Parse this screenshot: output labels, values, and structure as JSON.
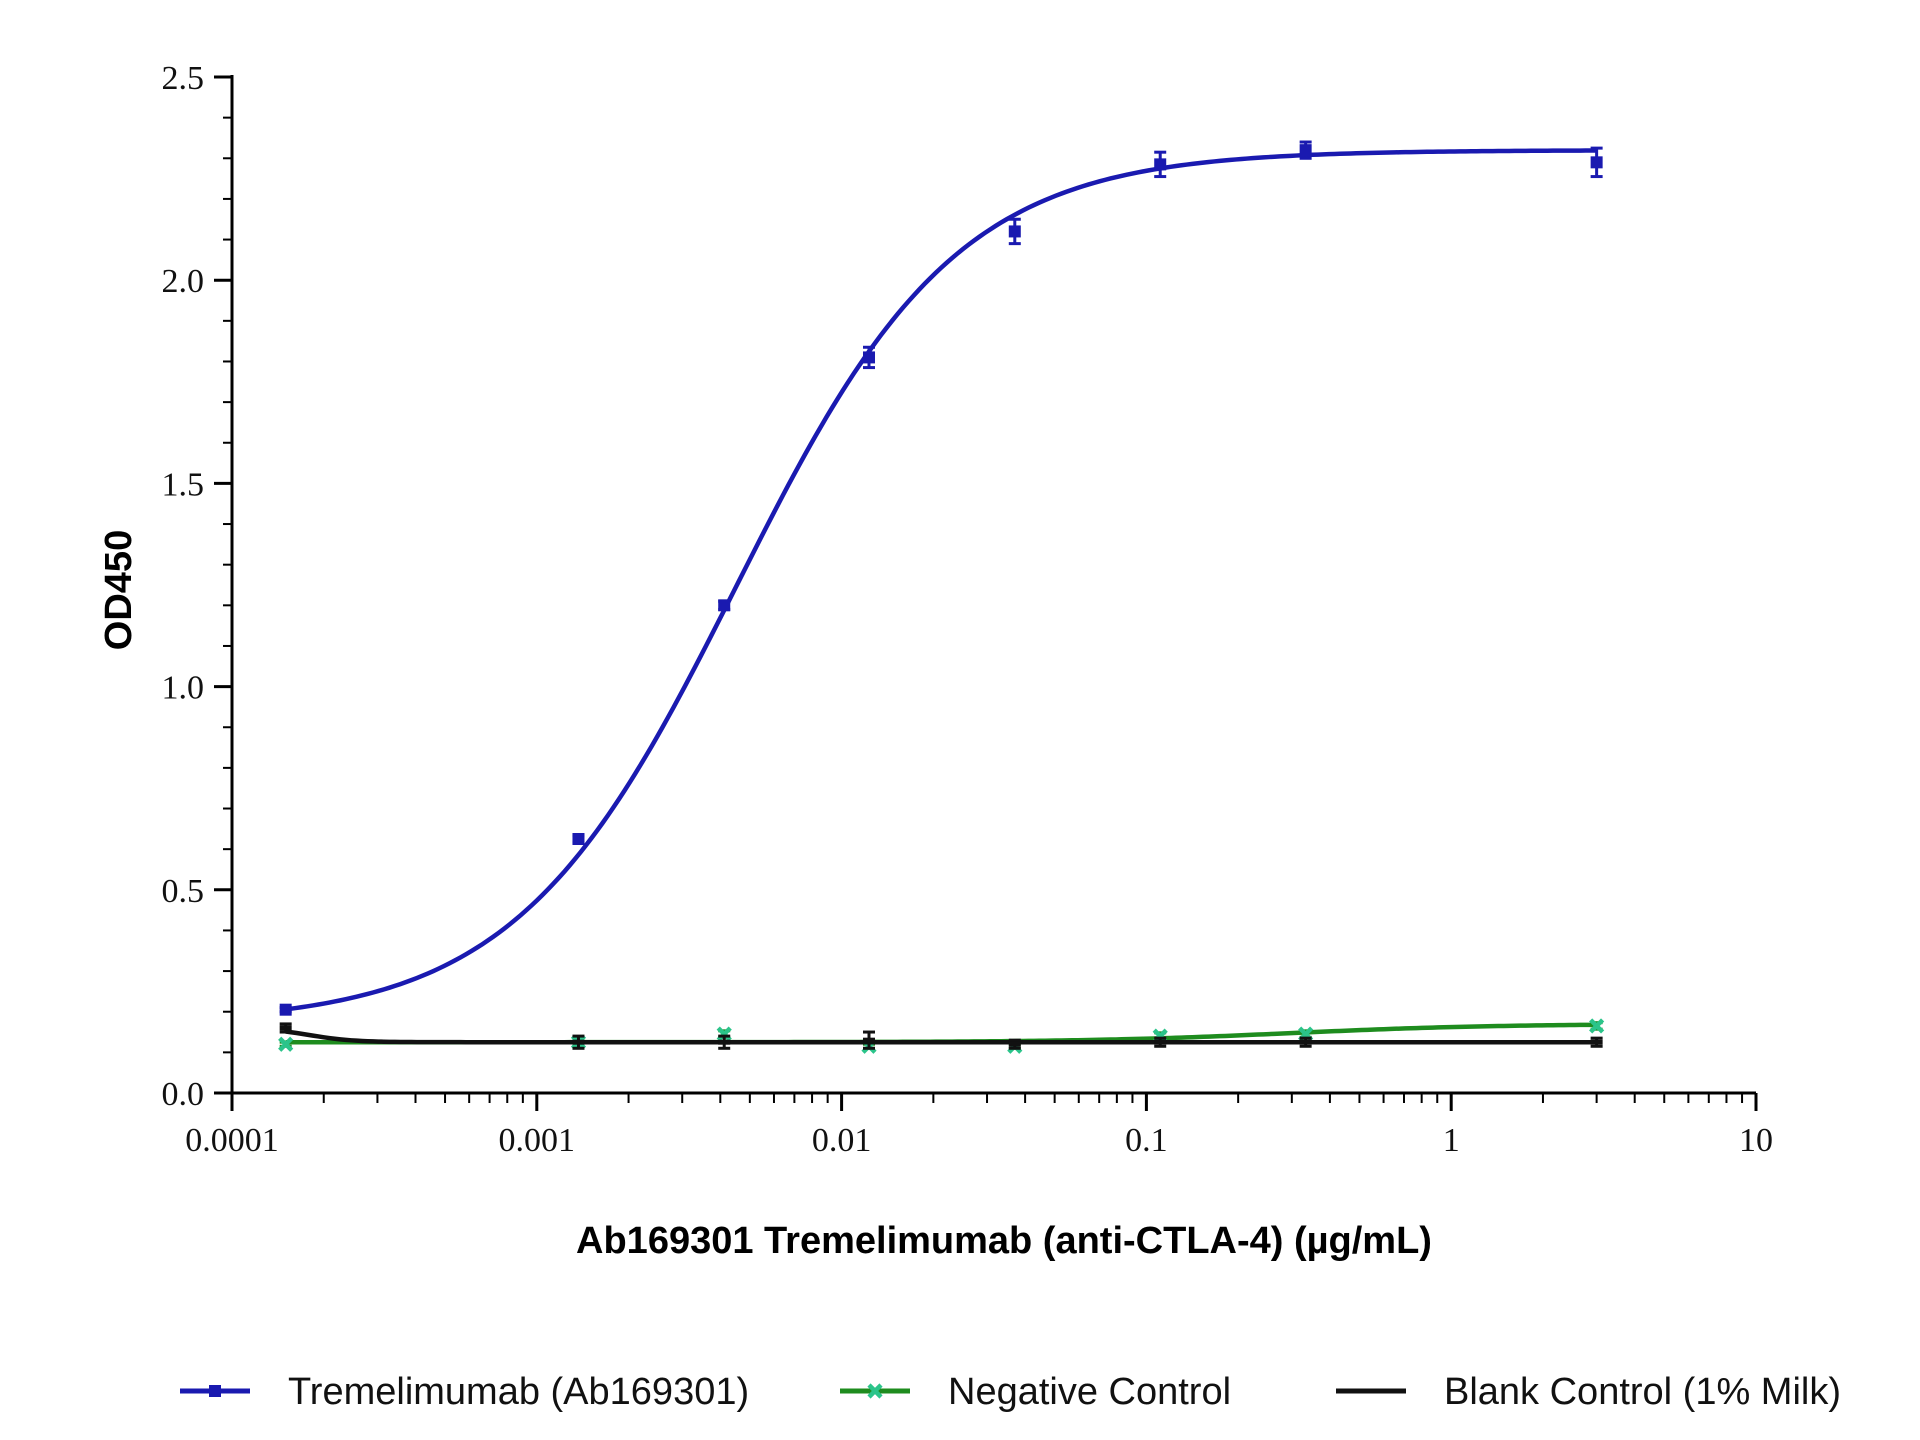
{
  "chart_data": {
    "type": "line",
    "xlabel": "Ab169301 Tremelimumab (anti-CTLA-4) (µg/mL)",
    "ylabel": "OD450",
    "xscale": "log",
    "xlim": [
      0.0001,
      10
    ],
    "ylim": [
      0,
      2.5
    ],
    "x_ticks": [
      0.0001,
      0.001,
      0.01,
      0.1,
      1,
      10
    ],
    "x_tick_labels": [
      "0.0001",
      "0.001",
      "0.01",
      "0.1",
      "1",
      "10"
    ],
    "y_ticks": [
      0,
      0.5,
      1,
      1.5,
      2,
      2.5
    ],
    "y_tick_labels": [
      "0.0",
      "0.5",
      "1.0",
      "1.5",
      "2.0",
      "2.5"
    ],
    "grid": false,
    "legend_position": "bottom",
    "series": [
      {
        "name": "Tremelimumab (Ab169301)",
        "color": "#1a1ab0",
        "marker": "square",
        "x": [
          0.00015,
          0.00137,
          0.00412,
          0.0123,
          0.037,
          0.111,
          0.333,
          3.0
        ],
        "y": [
          0.205,
          0.625,
          1.2,
          1.81,
          2.12,
          2.285,
          2.32,
          2.29
        ],
        "err": [
          0.005,
          0.008,
          0.01,
          0.025,
          0.03,
          0.03,
          0.02,
          0.035
        ],
        "fit": {
          "bottom": 0.17,
          "top": 2.32,
          "ec50": 0.0045,
          "hill": 1.2
        }
      },
      {
        "name": "Negative Control",
        "color": "#1e8c1e",
        "marker_color": "#2bc48a",
        "marker": "x",
        "x": [
          0.00015,
          0.00137,
          0.00412,
          0.0123,
          0.037,
          0.111,
          0.333,
          3.0
        ],
        "y": [
          0.12,
          0.125,
          0.145,
          0.115,
          0.115,
          0.14,
          0.145,
          0.165
        ],
        "err": [
          0.005,
          0.01,
          0.008,
          0.005,
          0.005,
          0.008,
          0.008,
          0.008
        ],
        "fit": {
          "bottom": 0.125,
          "top": 0.17,
          "ec50": 0.3,
          "hill": 1.3
        }
      },
      {
        "name": "Blank Control (1% Milk)",
        "color": "#111111",
        "marker": "dash",
        "x": [
          0.00015,
          0.00137,
          0.00412,
          0.0123,
          0.037,
          0.111,
          0.333,
          3.0
        ],
        "y": [
          0.16,
          0.125,
          0.125,
          0.13,
          0.12,
          0.125,
          0.125,
          0.125
        ],
        "err": [
          0.01,
          0.015,
          0.015,
          0.02,
          0.01,
          0.01,
          0.01,
          0.01
        ],
        "fit": {
          "bottom": 0.125,
          "top": 0.16,
          "ec50": 0.00018,
          "hill": -6
        }
      }
    ]
  }
}
